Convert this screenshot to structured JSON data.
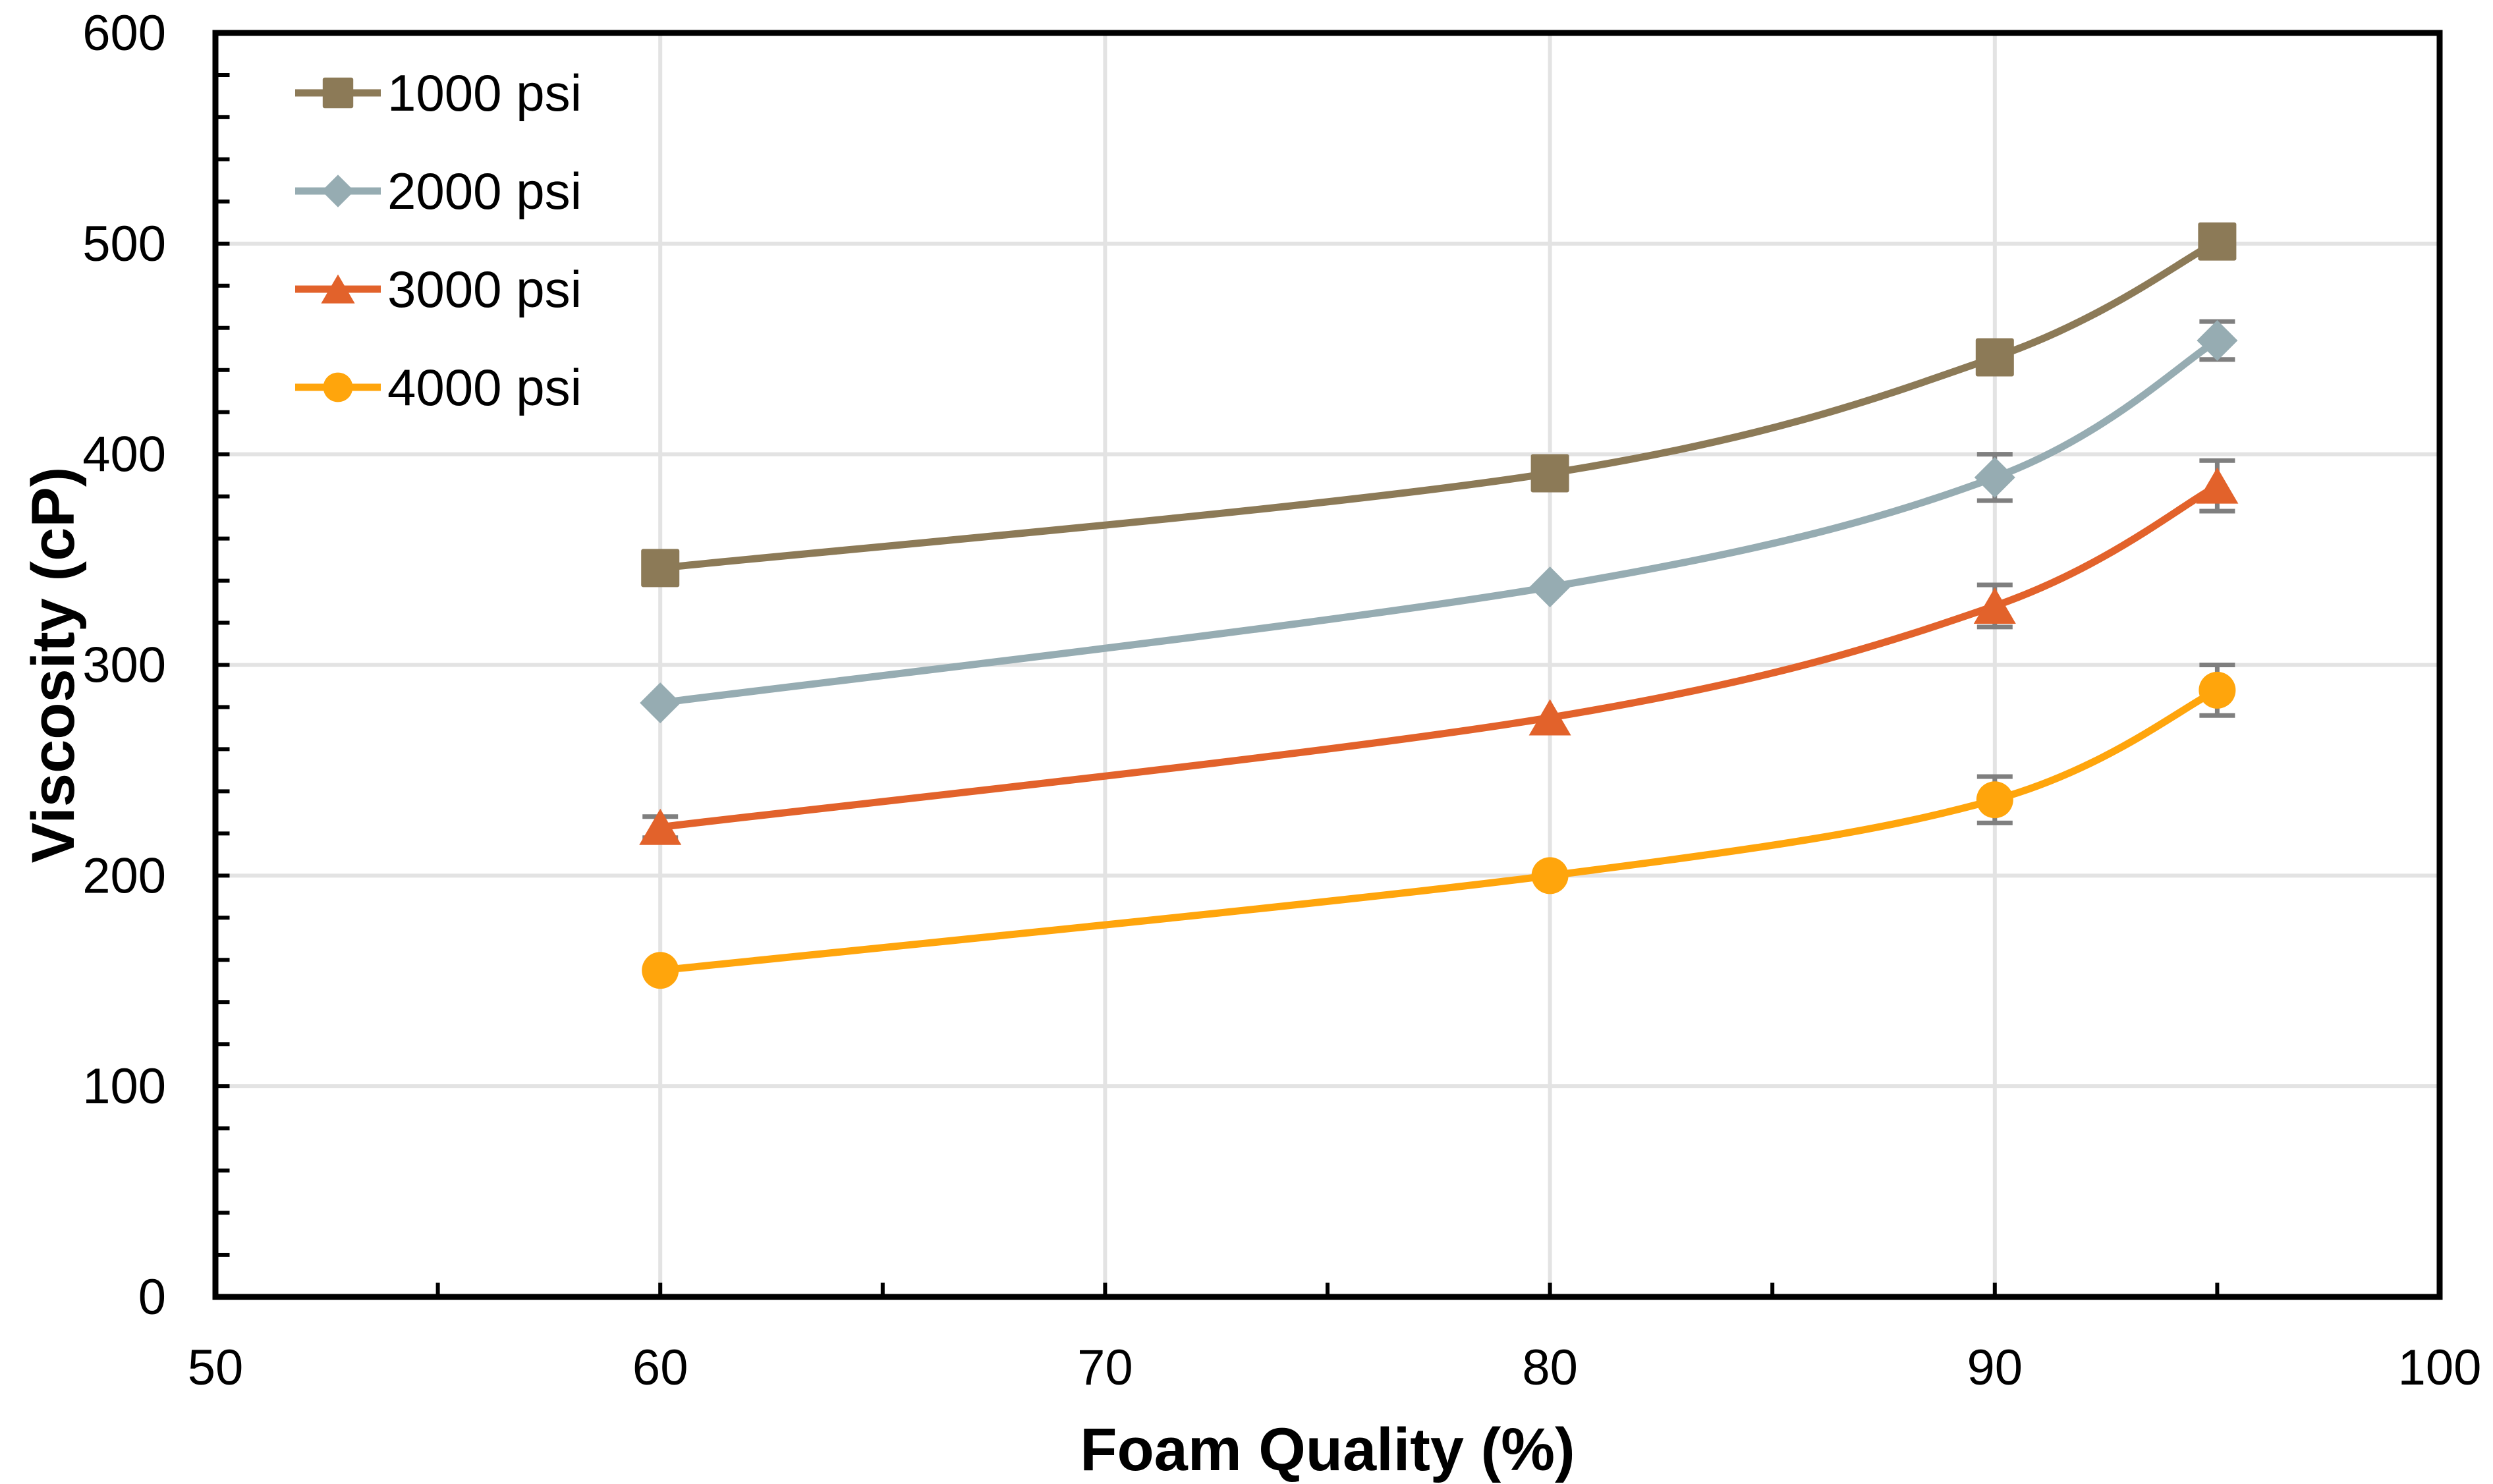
{
  "page": {
    "background": "#FFFFFF"
  },
  "chart_data": {
    "type": "line",
    "title": "",
    "xlabel": "Foam Quality (%)",
    "ylabel": "Viscosity (cP)",
    "xlim": [
      50,
      100
    ],
    "ylim": [
      0,
      600
    ],
    "x_major_ticks": [
      50,
      60,
      70,
      80,
      90,
      100
    ],
    "y_major_ticks": [
      0,
      100,
      200,
      300,
      400,
      500,
      600
    ],
    "x_minor_step": 5,
    "y_minor_step": 20,
    "grid": true,
    "smoothed_lines": true,
    "legend_position": "top-left-inside",
    "frame_color": "#000000",
    "gridline_color": "#E3E3E3",
    "error_bar_color": "#7F7F7F",
    "x": [
      60,
      80,
      90,
      95
    ],
    "series": [
      {
        "name": "1000 psi",
        "color": "#8C7A57",
        "marker": "square",
        "values": [
          346,
          391,
          446,
          501
        ],
        "errors": [
          null,
          null,
          null,
          null
        ]
      },
      {
        "name": "2000 psi",
        "color": "#96ACB2",
        "marker": "diamond",
        "values": [
          282,
          337,
          389,
          454
        ],
        "errors": [
          null,
          null,
          11,
          9
        ]
      },
      {
        "name": "3000 psi",
        "color": "#E2622B",
        "marker": "triangle",
        "values": [
          223,
          275,
          328,
          385
        ],
        "errors": [
          5,
          null,
          10,
          12
        ]
      },
      {
        "name": "4000 psi",
        "color": "#FFA50C",
        "marker": "circle",
        "values": [
          155,
          200,
          236,
          288
        ],
        "errors": [
          null,
          null,
          11,
          12
        ]
      }
    ]
  }
}
